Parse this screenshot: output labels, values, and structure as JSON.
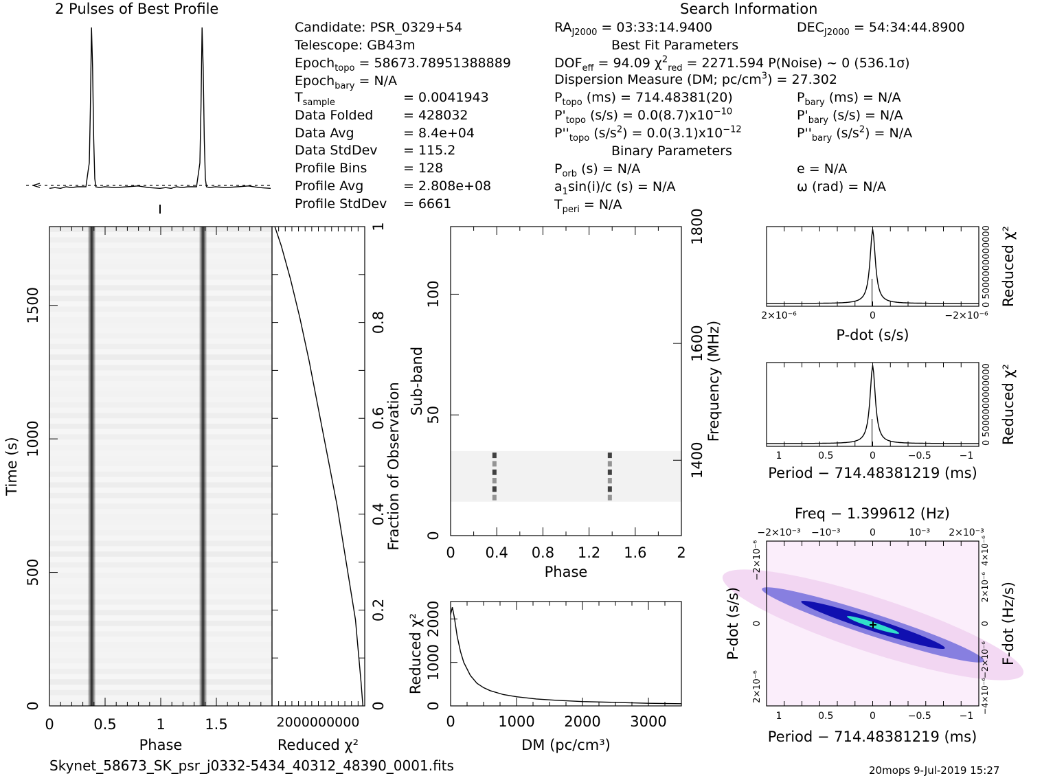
{
  "profile": {
    "title": "2 Pulses of Best Profile"
  },
  "header": {
    "search_title": "Search Information",
    "candidate": "Candidate:  PSR_0329+54",
    "telescope": "Telescope:  GB43m",
    "epoch_topo": "Epoch",
    "epoch_topo_sub": "topo",
    "epoch_topo_val": " = 58673.78951388889",
    "epoch_bary": "Epoch",
    "epoch_bary_sub": "bary",
    "epoch_bary_val": " = N/A",
    "stats": [
      {
        "label": "T",
        "sub": "sample",
        "value": "=   0.0041943"
      },
      {
        "label": "Data Folded",
        "sub": "",
        "value": "=   428032"
      },
      {
        "label": "Data Avg",
        "sub": "",
        "value": "=   8.4e+04"
      },
      {
        "label": "Data StdDev",
        "sub": "",
        "value": "=   115.2"
      },
      {
        "label": "Profile Bins",
        "sub": "",
        "value": "=   128"
      },
      {
        "label": "Profile Avg",
        "sub": "",
        "value": "=   2.808e+08"
      },
      {
        "label": "Profile StdDev",
        "sub": "",
        "value": "=   6661"
      }
    ],
    "ra": "RA",
    "ra_sub": "J2000",
    "ra_val": " = 03:33:14.9400",
    "dec": "DEC",
    "dec_sub": "J2000",
    "dec_val": " = 54:34:44.8900",
    "best_fit_title": "Best Fit Parameters",
    "dof": "DOF",
    "dof_sub": "eff",
    "dof_val": " = 94.09   χ",
    "chi_sup": "2",
    "chi_sub": "red",
    "chi_val": " = 2271.594   P(Noise) ~ 0    (536.1σ)",
    "dm_line": "Dispersion Measure (DM; pc/cm",
    "dm_sup": "3",
    "dm_val": ") = 27.302",
    "ptopo": "P",
    "ptopo_sub": "topo",
    "ptopo_val": " (ms) =  714.48381(20)",
    "pbary": "P",
    "pbary_sub": "bary",
    "pbary_val": " (ms) = N/A",
    "pdtopo": "P'",
    "pdtopo_sub": "topo",
    "pdtopo_val": " (s/s) = 0.0(8.7)x10",
    "pdtopo_sup": "−10",
    "pdbary": "P'",
    "pdbary_sub": "bary",
    "pdbary_val": " (s/s) = N/A",
    "pddtopo": "P''",
    "pddtopo_sub": "topo",
    "pddtopo_val": " (s/s",
    "pddtopo_sup1": "2",
    "pddtopo_val2": ") = 0.0(3.1)x10",
    "pddtopo_sup2": "−12",
    "pddbary": "P''",
    "pddbary_sub": "bary",
    "pddbary_val": " (s/s",
    "pddbary_sup": "2",
    "pddbary_val2": ") = N/A",
    "binary_title": "Binary Parameters",
    "porb": "P",
    "porb_sub": "orb",
    "porb_val": " (s) = N/A",
    "ecc": "e = N/A",
    "asini": "a",
    "asini_sub": "1",
    "asini_val": "sin(i)/c (s) = N/A",
    "omega": "ω (rad) = N/A",
    "tperi": "T",
    "tperi_sub": "peri",
    "tperi_val": " = N/A"
  },
  "footer": {
    "filename": "Skynet_58673_SK_psr_j0332-5434_40312_48390_0001.fits",
    "stamp": "20mops  9-Jul-2019 15:27"
  },
  "colors": {
    "axis": "#000000",
    "grey": "#444444",
    "cmap_low": "#f6e6f6",
    "cmap_mid": "#2020c0",
    "cmap_high": "#40e0c0"
  },
  "chart_data": [
    {
      "id": "profile",
      "type": "line",
      "title": "2 Pulses of Best Profile",
      "x": [
        0.0,
        0.05,
        0.1,
        0.15,
        0.2,
        0.25,
        0.3,
        0.33,
        0.35,
        0.36,
        0.37,
        0.38,
        0.39,
        0.4,
        0.41,
        0.42,
        0.45,
        0.5,
        0.6,
        0.7,
        0.8,
        0.9,
        1.0,
        1.05,
        1.1,
        1.15,
        1.2,
        1.25,
        1.3,
        1.33,
        1.35,
        1.36,
        1.37,
        1.38,
        1.39,
        1.4,
        1.41,
        1.42,
        1.45,
        1.5,
        1.6,
        1.7,
        1.8,
        1.9,
        2.0
      ],
      "values": [
        -0.01,
        -0.005,
        -0.01,
        0.0,
        -0.005,
        0.0,
        0.0,
        0.0,
        0.1,
        0.15,
        0.5,
        1.0,
        0.75,
        0.3,
        0.05,
        0.0,
        -0.005,
        0.0,
        -0.005,
        0.0,
        0.005,
        -0.005,
        -0.01,
        -0.005,
        -0.01,
        0.0,
        -0.005,
        0.0,
        0.0,
        0.0,
        0.1,
        0.15,
        0.5,
        1.0,
        0.75,
        0.3,
        0.05,
        0.0,
        -0.005,
        0.0,
        -0.005,
        0.0,
        0.005,
        -0.005,
        -0.01
      ],
      "xlim": [
        0,
        2
      ]
    },
    {
      "id": "time-phase",
      "type": "heatmap",
      "xlabel": "Phase",
      "ylabel": "Time (s)",
      "xlim": [
        0,
        2
      ],
      "ylim": [
        0,
        1795
      ],
      "x_ticks": [
        "0",
        "0.5",
        "1",
        "1.5"
      ],
      "y_ticks": [
        "0",
        "500",
        "1000",
        "1500"
      ],
      "pulse_phases": [
        0.38,
        1.38
      ]
    },
    {
      "id": "chi-vs-time",
      "type": "line",
      "xlabel": "Reduced χ²",
      "ylabel": "Fraction of Observation",
      "x_tick_text": "2000000000",
      "y_ticks": [
        "0",
        "0.2",
        "0.4",
        "0.6",
        "0.8",
        "1"
      ],
      "x": [
        0.98,
        0.96,
        0.9,
        0.8,
        0.7,
        0.6,
        0.5,
        0.4,
        0.3,
        0.2,
        0.1,
        0.03
      ],
      "y": [
        0.0,
        0.05,
        0.18,
        0.3,
        0.42,
        0.52,
        0.62,
        0.72,
        0.81,
        0.89,
        0.96,
        1.0
      ]
    },
    {
      "id": "subband-phase",
      "type": "heatmap",
      "xlabel": "Phase",
      "ylabel": "Sub-band",
      "y2label": "Frequency (MHz)",
      "xlim": [
        0,
        2
      ],
      "ylim": [
        0,
        128
      ],
      "y2lim": [
        1271,
        1800
      ],
      "x_ticks": [
        "0",
        "0.4",
        "0.8",
        "1.2",
        "1.6",
        "2"
      ],
      "y_ticks": [
        "0",
        "50",
        "100"
      ],
      "y2_ticks": [
        "1400",
        "1600",
        "1800"
      ],
      "band_range": [
        14,
        35
      ],
      "pulse_phases": [
        0.38,
        1.38
      ]
    },
    {
      "id": "dm-curve",
      "type": "line",
      "xlabel": "DM (pc/cm³)",
      "ylabel": "Reduced χ²",
      "xlim": [
        0,
        3500
      ],
      "ylim": [
        0,
        2400
      ],
      "x_ticks": [
        "0",
        "1000",
        "2000",
        "3000"
      ],
      "y_ticks": [
        "0",
        "1000",
        "2000"
      ],
      "x": [
        0,
        27,
        60,
        100,
        150,
        200,
        300,
        400,
        500,
        600,
        800,
        1000,
        1300,
        1600,
        2000,
        2500,
        3000,
        3500
      ],
      "values": [
        2100,
        2270,
        2000,
        1600,
        1250,
        1000,
        700,
        520,
        420,
        350,
        260,
        210,
        160,
        130,
        100,
        80,
        60,
        50
      ]
    },
    {
      "id": "pdot-curve",
      "type": "line",
      "xlabel": "P-dot (s/s)",
      "ylabel": "Reduced χ²",
      "x_ticks": [
        "2×10⁻⁶",
        "0",
        "−2×10⁻⁶"
      ],
      "y_tick_text": "0 5000000000000",
      "peak": 1.0
    },
    {
      "id": "period-curve",
      "type": "line",
      "xlabel": "Period − 714.48381219 (ms)",
      "ylabel": "Reduced χ²",
      "x_ticks": [
        "1",
        "0.5",
        "0",
        "−0.5",
        "−1"
      ],
      "y_tick_text": "0 5000000000000",
      "peak": 1.0
    },
    {
      "id": "ppdot-map",
      "type": "heatmap",
      "title": "Freq − 1.399612 (Hz)",
      "xlabel": "Period − 714.48381219 (ms)",
      "ylabel": "P-dot (s/s)",
      "y2label": "F-dot (Hz/s)",
      "x_ticks": [
        "1",
        "0.5",
        "0",
        "−0.5",
        "−1"
      ],
      "top_ticks": [
        "−2×10⁻³",
        "−10⁻³",
        "0",
        "10⁻³",
        "2×10⁻³"
      ],
      "y_ticks": [
        "−2×10⁻⁶",
        "0",
        "2×10⁻⁶"
      ],
      "y2_ticks": [
        "4×10⁻⁶",
        "2×10⁻⁶",
        "0",
        "−2×10⁻⁶",
        "−4×10⁻⁶"
      ]
    }
  ]
}
